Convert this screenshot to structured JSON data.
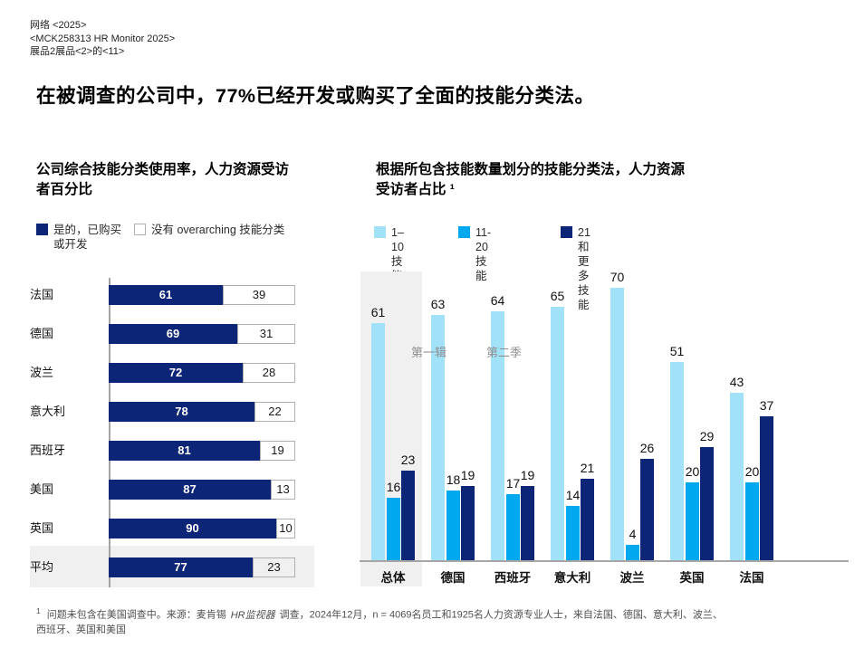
{
  "page": {
    "header_lines": [
      "网络 <2025>",
      "<MCK258313 HR Monitor 2025>",
      "展品2展品<2>的<11>"
    ],
    "title": "在被调查的公司中，77%已经开发或购买了全面的技能分类法。",
    "footnote": {
      "marker": "1",
      "pre": "问题未包含在美国调查中。来源：麦肯锡",
      "italic": "HR监视器",
      "post": "调查，2024年12月，n = 4069名员工和1925名人力资源专业人士，来自法国、德国、意大利、波兰、西班牙、英国和美国"
    }
  },
  "left_chart": {
    "title_lines": [
      "公司综合技能分类使用率，人力资源受访",
      "者百分比"
    ]
  },
  "right_chart": {
    "title_lines": [
      "根据所包含技能数量划分的技能分类法，人力资源",
      "受访者占比 ¹"
    ]
  },
  "colors": {
    "navy": "#0d2576",
    "cyan": "#00a8f0",
    "light_blue": "#a2e2f8",
    "highlight_band": "#f0f0f0",
    "axis_gray": "#a6a6a6",
    "annotation_gray": "#8f8f8f"
  },
  "chart_data": [
    {
      "type": "bar",
      "orientation": "horizontal",
      "stacked": true,
      "title": "公司综合技能分类使用率，人力资源受访者百分比",
      "categories": [
        "法国",
        "德国",
        "波兰",
        "意大利",
        "西班牙",
        "美国",
        "英国",
        "平均"
      ],
      "series": [
        {
          "name": "是的，已购买或开发",
          "color": "#0d2576",
          "values": [
            61,
            69,
            72,
            78,
            81,
            87,
            90,
            77
          ]
        },
        {
          "name": "没有 overarching 技能分类",
          "color": "#ffffff",
          "values": [
            39,
            31,
            28,
            22,
            19,
            13,
            10,
            23
          ]
        }
      ],
      "xlim": [
        0,
        100
      ],
      "highlight_category": "平均",
      "legend_position": "top",
      "grid": false
    },
    {
      "type": "bar",
      "orientation": "vertical",
      "grouped": true,
      "title": "根据所包含技能数量划分的技能分类法，人力资源受访者占比 1",
      "categories": [
        "总体",
        "德国",
        "西班牙",
        "意大利",
        "波兰",
        "英国",
        "法国"
      ],
      "series": [
        {
          "name": "1–10技能",
          "color": "#a2e2f8",
          "values": [
            61,
            63,
            64,
            65,
            70,
            51,
            43
          ]
        },
        {
          "name": "11-20技能",
          "color": "#00a8f0",
          "values": [
            16,
            18,
            17,
            14,
            4,
            20,
            20
          ]
        },
        {
          "name": "21和更多技能",
          "color": "#0d2576",
          "values": [
            23,
            19,
            19,
            21,
            26,
            29,
            37
          ]
        }
      ],
      "annotations": [
        "第一辑",
        "第二季"
      ],
      "ylim": [
        0,
        75
      ],
      "highlight_category": "总体",
      "legend_position": "top",
      "grid": false
    }
  ]
}
